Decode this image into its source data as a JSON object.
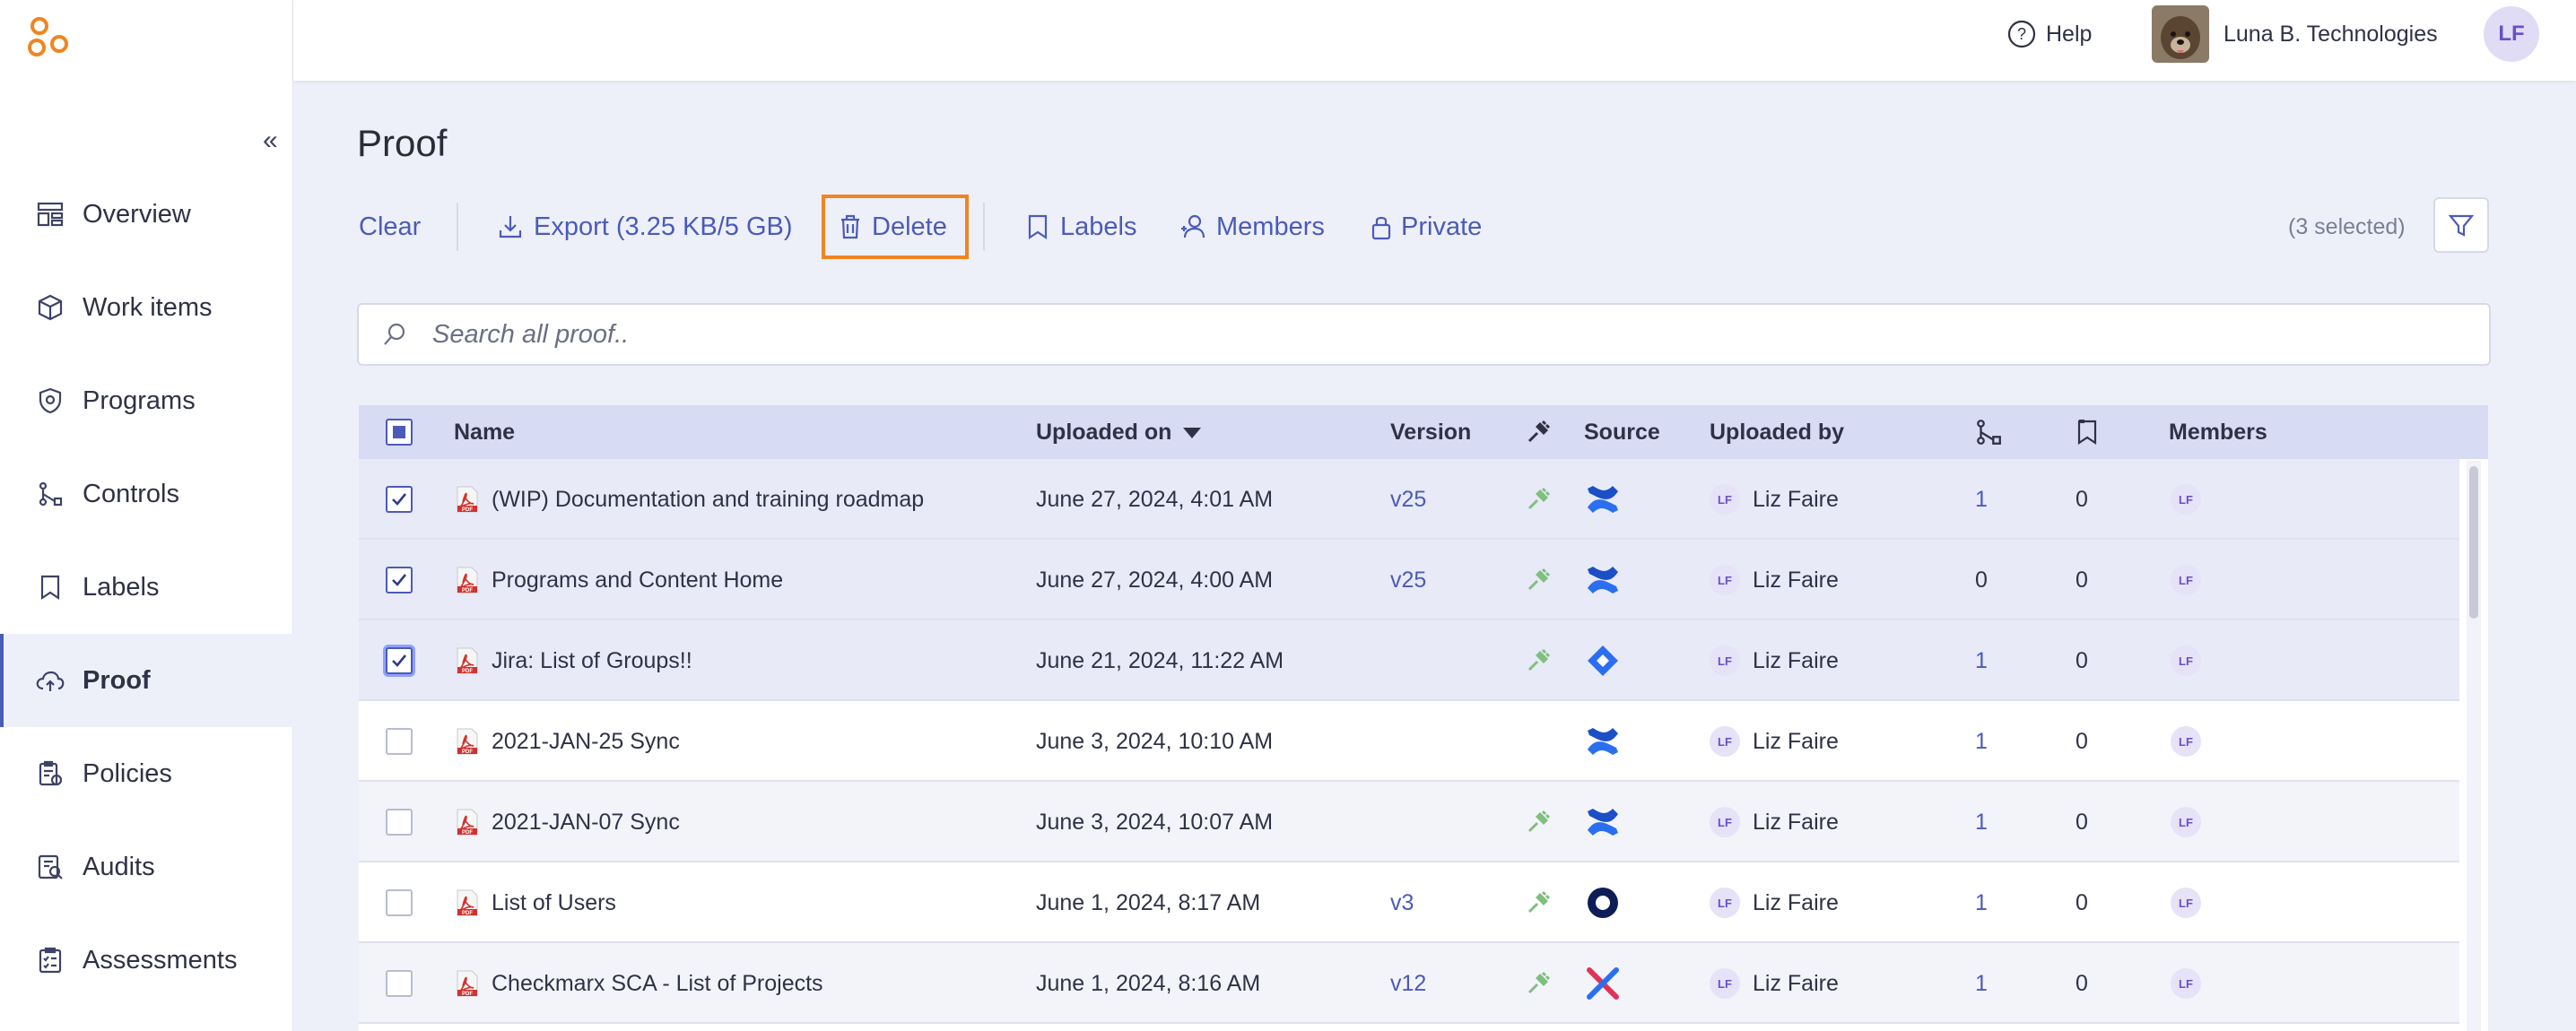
{
  "header": {
    "help_label": "Help",
    "org_name": "Luna B. Technologies",
    "user_initials": "LF"
  },
  "sidebar": {
    "collapse_glyph": "«",
    "items": [
      {
        "label": "Overview",
        "icon": "overview-icon"
      },
      {
        "label": "Work items",
        "icon": "box-icon"
      },
      {
        "label": "Programs",
        "icon": "shield-icon"
      },
      {
        "label": "Controls",
        "icon": "controls-icon"
      },
      {
        "label": "Labels",
        "icon": "label-icon"
      },
      {
        "label": "Proof",
        "icon": "cloud-upload-icon",
        "active": true
      },
      {
        "label": "Policies",
        "icon": "policy-icon"
      },
      {
        "label": "Audits",
        "icon": "audit-icon"
      },
      {
        "label": "Assessments",
        "icon": "assessment-icon"
      }
    ]
  },
  "page": {
    "title": "Proof"
  },
  "toolbar": {
    "clear": "Clear",
    "export": "Export (3.25 KB/5 GB)",
    "delete": "Delete",
    "labels": "Labels",
    "members": "Members",
    "private": "Private",
    "selected_count": "(3 selected)"
  },
  "search": {
    "placeholder": "Search all proof.."
  },
  "table": {
    "columns": {
      "name": "Name",
      "uploaded_on": "Uploaded on",
      "version": "Version",
      "source": "Source",
      "uploaded_by": "Uploaded by",
      "members": "Members"
    },
    "rows": [
      {
        "name": "(WIP) Documentation and training roadmap",
        "uploaded_on": "June 27, 2024, 4:01 AM",
        "version": "v25",
        "plugin": true,
        "source": "confluence",
        "uploader_initials": "LF",
        "uploader": "Liz Faire",
        "links": "1",
        "labels": "0",
        "member_initials": "LF",
        "checked": true
      },
      {
        "name": "Programs and Content Home",
        "uploaded_on": "June 27, 2024, 4:00 AM",
        "version": "v25",
        "plugin": true,
        "source": "confluence",
        "uploader_initials": "LF",
        "uploader": "Liz Faire",
        "links": "0",
        "labels": "0",
        "member_initials": "LF",
        "checked": true
      },
      {
        "name": "Jira: List of Groups!!",
        "uploaded_on": "June 21, 2024, 11:22 AM",
        "version": "",
        "plugin": true,
        "source": "jira",
        "uploader_initials": "LF",
        "uploader": "Liz Faire",
        "links": "1",
        "labels": "0",
        "member_initials": "LF",
        "checked": true
      },
      {
        "name": "2021-JAN-25 Sync",
        "uploaded_on": "June 3, 2024, 10:10 AM",
        "version": "",
        "plugin": false,
        "source": "confluence",
        "uploader_initials": "LF",
        "uploader": "Liz Faire",
        "links": "1",
        "labels": "0",
        "member_initials": "LF",
        "checked": false
      },
      {
        "name": "2021-JAN-07 Sync",
        "uploaded_on": "June 3, 2024, 10:07 AM",
        "version": "",
        "plugin": true,
        "source": "confluence",
        "uploader_initials": "LF",
        "uploader": "Liz Faire",
        "links": "1",
        "labels": "0",
        "member_initials": "LF",
        "checked": false
      },
      {
        "name": "List of Users",
        "uploaded_on": "June 1, 2024, 8:17 AM",
        "version": "v3",
        "plugin": true,
        "source": "okta",
        "uploader_initials": "LF",
        "uploader": "Liz Faire",
        "links": "1",
        "labels": "0",
        "member_initials": "LF",
        "checked": false
      },
      {
        "name": "Checkmarx SCA - List of Projects",
        "uploaded_on": "June 1, 2024, 8:16 AM",
        "version": "v12",
        "plugin": true,
        "source": "checkmarx",
        "uploader_initials": "LF",
        "uploader": "Liz Faire",
        "links": "1",
        "labels": "0",
        "member_initials": "LF",
        "checked": false
      }
    ]
  },
  "colors": {
    "accent": "#4b5bb8",
    "highlight": "#f08522",
    "header_row": "#d8dbf4"
  }
}
